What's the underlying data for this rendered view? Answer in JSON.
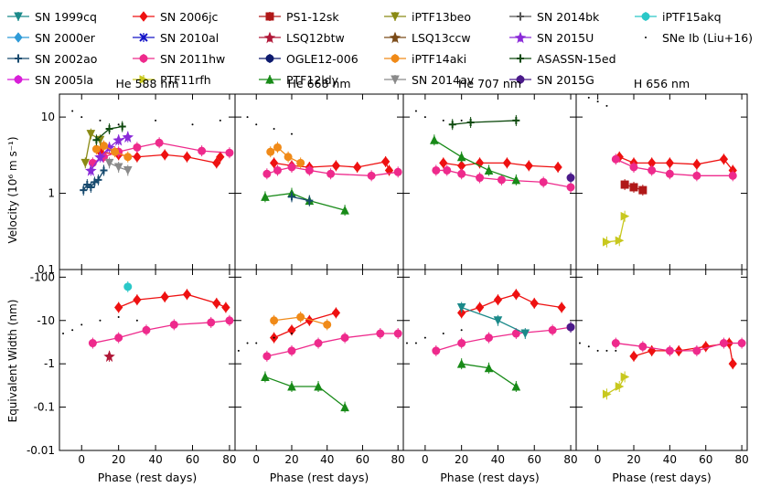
{
  "figure": {
    "x_axis_label": "Phase (rest days)",
    "x_ticks": [
      "0",
      "20",
      "40",
      "60",
      "80"
    ],
    "x_tick_values": [
      0,
      20,
      40,
      60,
      80
    ],
    "xlim": [
      -12,
      83
    ]
  },
  "legend": [
    {
      "name": "SN 1999cq",
      "color": "#1b8a8a",
      "marker": "tri_down"
    },
    {
      "name": "SN 2000er",
      "color": "#2f9bd8",
      "marker": "diamond"
    },
    {
      "name": "SN 2002ao",
      "color": "#174a6e",
      "marker": "plus"
    },
    {
      "name": "SN 2005la",
      "color": "#d81fd8",
      "marker": "circle"
    },
    {
      "name": "SN 2006jc",
      "color": "#ee1111",
      "marker": "diamond"
    },
    {
      "name": "SN 2010al",
      "color": "#1515c8",
      "marker": "x"
    },
    {
      "name": "SN 2011hw",
      "color": "#ee2a8c",
      "marker": "hexagon"
    },
    {
      "name": "PTF11rfh",
      "color": "#c8c81e",
      "marker": "tri_right"
    },
    {
      "name": "PS1-12sk",
      "color": "#b01818",
      "marker": "square"
    },
    {
      "name": "LSQ12btw",
      "color": "#b01838",
      "marker": "star"
    },
    {
      "name": "OGLE12-006",
      "color": "#0d1a6e",
      "marker": "hexagon"
    },
    {
      "name": "PTF12ldy",
      "color": "#188a18",
      "marker": "tri_up"
    },
    {
      "name": "iPTF13beo",
      "color": "#8a8a14",
      "marker": "tri_down"
    },
    {
      "name": "LSQ13ccw",
      "color": "#7a4a18",
      "marker": "star"
    },
    {
      "name": "iPTF14aki",
      "color": "#f08a18",
      "marker": "circle"
    },
    {
      "name": "SN 2014av",
      "color": "#8a8a8a",
      "marker": "tri_down"
    },
    {
      "name": "SN 2014bk",
      "color": "#555555",
      "marker": "plus"
    },
    {
      "name": "SN 2015U",
      "color": "#8a2ad8",
      "marker": "star"
    },
    {
      "name": "ASASSN-15ed",
      "color": "#0e4a0e",
      "marker": "plus"
    },
    {
      "name": "SN 2015G",
      "color": "#4a1a8a",
      "marker": "hexagon"
    },
    {
      "name": "iPTF15akq",
      "color": "#2ac8c8",
      "marker": "circle"
    },
    {
      "name": "SNe Ib (Liu+16)",
      "color": "#000000",
      "marker": "dot"
    }
  ],
  "chart_data": [
    {
      "type": "scatter",
      "row": "velocity",
      "title": "He 588 nm",
      "ylabel": "Velocity (10⁶ m s⁻¹)",
      "yscale": "log",
      "ylim": [
        0.1,
        20
      ],
      "yticks": [
        "0.1",
        "1",
        "10"
      ],
      "ytick_values": [
        0.1,
        1,
        10
      ],
      "series": [
        {
          "name": "SN 2006jc",
          "x": [
            10,
            20,
            30,
            45,
            57,
            73,
            75
          ],
          "y": [
            3.5,
            3.2,
            3.0,
            3.2,
            3.0,
            2.5,
            3.0
          ]
        },
        {
          "name": "SN 2011hw",
          "x": [
            6,
            12,
            20,
            30,
            42,
            65,
            80
          ],
          "y": [
            2.5,
            3.0,
            3.5,
            4.0,
            4.6,
            3.6,
            3.4
          ]
        },
        {
          "name": "SN 2002ao",
          "x": [
            1,
            3,
            5,
            7,
            9,
            12
          ],
          "y": [
            1.1,
            1.3,
            1.2,
            1.4,
            1.5,
            2.0
          ]
        },
        {
          "name": "SN 2015U",
          "x": [
            5,
            10,
            15,
            20,
            25
          ],
          "y": [
            2.0,
            3.0,
            4.0,
            5.0,
            5.5
          ]
        },
        {
          "name": "iPTF14aki",
          "x": [
            8,
            12,
            18,
            25
          ],
          "y": [
            3.8,
            4.2,
            3.5,
            3.0
          ]
        },
        {
          "name": "SN 2014av",
          "x": [
            15,
            20,
            25
          ],
          "y": [
            2.5,
            2.2,
            2.0
          ]
        },
        {
          "name": "iPTF13beo",
          "x": [
            2,
            5,
            10
          ],
          "y": [
            2.5,
            6.0,
            5.0
          ]
        },
        {
          "name": "ASASSN-15ed",
          "x": [
            8,
            15,
            22
          ],
          "y": [
            5.0,
            7.0,
            7.5
          ]
        },
        {
          "name": "SNe Ib (Liu+16)",
          "x": [
            -5,
            0,
            10,
            20,
            40,
            60,
            75
          ],
          "y": [
            12,
            10,
            9,
            8,
            9,
            8,
            9
          ]
        }
      ]
    },
    {
      "type": "scatter",
      "row": "velocity",
      "title": "He 668 nm",
      "ylabel": "",
      "yscale": "log",
      "ylim": [
        0.1,
        20
      ],
      "series": [
        {
          "name": "SN 2006jc",
          "x": [
            10,
            20,
            30,
            45,
            57,
            73,
            75
          ],
          "y": [
            2.5,
            2.3,
            2.2,
            2.3,
            2.2,
            2.6,
            2.0
          ]
        },
        {
          "name": "SN 2011hw",
          "x": [
            6,
            12,
            20,
            30,
            42,
            65,
            80
          ],
          "y": [
            1.8,
            2.0,
            2.2,
            2.0,
            1.8,
            1.7,
            1.9
          ]
        },
        {
          "name": "PTF12ldy",
          "x": [
            5,
            20,
            30,
            50
          ],
          "y": [
            0.9,
            1.0,
            0.8,
            0.6
          ]
        },
        {
          "name": "iPTF14aki",
          "x": [
            8,
            12,
            18,
            25
          ],
          "y": [
            3.5,
            4.0,
            3.0,
            2.5
          ]
        },
        {
          "name": "SN 2002ao",
          "x": [
            20,
            30
          ],
          "y": [
            0.9,
            0.8
          ]
        },
        {
          "name": "SNe Ib (Liu+16)",
          "x": [
            -5,
            0,
            10,
            20
          ],
          "y": [
            10,
            8,
            7,
            6
          ]
        }
      ]
    },
    {
      "type": "scatter",
      "row": "velocity",
      "title": "He 707 nm",
      "ylabel": "",
      "yscale": "log",
      "ylim": [
        0.1,
        20
      ],
      "series": [
        {
          "name": "SN 2006jc",
          "x": [
            10,
            20,
            30,
            45,
            57,
            73
          ],
          "y": [
            2.5,
            2.3,
            2.5,
            2.5,
            2.3,
            2.2
          ]
        },
        {
          "name": "SN 2011hw",
          "x": [
            6,
            12,
            20,
            30,
            42,
            65,
            80
          ],
          "y": [
            2.0,
            2.0,
            1.8,
            1.6,
            1.5,
            1.4,
            1.2
          ]
        },
        {
          "name": "ASASSN-15ed",
          "x": [
            15,
            25,
            50
          ],
          "y": [
            8,
            8.5,
            9
          ]
        },
        {
          "name": "PTF12ldy",
          "x": [
            5,
            20,
            35,
            50
          ],
          "y": [
            5,
            3,
            2,
            1.5
          ]
        },
        {
          "name": "SN 2015G",
          "x": [
            80
          ],
          "y": [
            1.6
          ]
        },
        {
          "name": "SNe Ib (Liu+16)",
          "x": [
            -5,
            0,
            10,
            20
          ],
          "y": [
            12,
            10,
            9,
            9
          ]
        }
      ]
    },
    {
      "type": "scatter",
      "row": "velocity",
      "title": "H 656 nm",
      "ylabel": "",
      "yscale": "log",
      "ylim": [
        0.1,
        20
      ],
      "series": [
        {
          "name": "SN 2006jc",
          "x": [
            12,
            20,
            30,
            40,
            55,
            70,
            75
          ],
          "y": [
            3.0,
            2.5,
            2.5,
            2.5,
            2.4,
            2.8,
            2.0
          ]
        },
        {
          "name": "SN 2011hw",
          "x": [
            10,
            20,
            30,
            40,
            55,
            75
          ],
          "y": [
            2.8,
            2.2,
            2.0,
            1.8,
            1.7,
            1.7
          ]
        },
        {
          "name": "PTF11rfh",
          "x": [
            5,
            12,
            15
          ],
          "y": [
            0.23,
            0.24,
            0.5
          ]
        },
        {
          "name": "PS1-12sk",
          "x": [
            15,
            20,
            25
          ],
          "y": [
            1.3,
            1.2,
            1.1
          ]
        },
        {
          "name": "SNe Ib (Liu+16)",
          "x": [
            -5,
            0,
            5
          ],
          "y": [
            18,
            16,
            14
          ]
        }
      ]
    },
    {
      "type": "scatter",
      "row": "ew",
      "title": "",
      "ylabel": "Equivalent Width (nm)",
      "yscale": "symlog",
      "ylim": [
        -0.01,
        -150
      ],
      "yticks": [
        "-0.01",
        "-0.1",
        "-1",
        "-10",
        "-100"
      ],
      "ytick_values": [
        -0.01,
        -0.1,
        -1,
        -10,
        -100
      ],
      "series": [
        {
          "name": "SN 2006jc",
          "x": [
            20,
            30,
            45,
            57,
            73,
            78
          ],
          "y": [
            -20,
            -30,
            -35,
            -40,
            -25,
            -20
          ]
        },
        {
          "name": "SN 2011hw",
          "x": [
            6,
            20,
            35,
            50,
            70,
            80
          ],
          "y": [
            -3,
            -4,
            -6,
            -8,
            -9,
            -10
          ]
        },
        {
          "name": "LSQ12btw",
          "x": [
            15
          ],
          "y": [
            -1.5
          ]
        },
        {
          "name": "iPTF15akq",
          "x": [
            25
          ],
          "y": [
            -60
          ]
        },
        {
          "name": "SNe Ib (Liu+16)",
          "x": [
            -10,
            -5,
            0,
            10,
            20,
            30
          ],
          "y": [
            -5,
            -6,
            -8,
            -10,
            -12,
            -10
          ]
        }
      ]
    },
    {
      "type": "scatter",
      "row": "ew",
      "title": "",
      "ylabel": "",
      "yscale": "symlog",
      "ylim": [
        -0.01,
        -150
      ],
      "series": [
        {
          "name": "SN 2006jc",
          "x": [
            10,
            20,
            30,
            45
          ],
          "y": [
            -4,
            -6,
            -10,
            -15
          ]
        },
        {
          "name": "SN 2011hw",
          "x": [
            6,
            20,
            35,
            50,
            70,
            80
          ],
          "y": [
            -1.5,
            -2,
            -3,
            -4,
            -5,
            -5
          ]
        },
        {
          "name": "PTF12ldy",
          "x": [
            5,
            20,
            35,
            50
          ],
          "y": [
            -0.5,
            -0.3,
            -0.3,
            -0.1
          ]
        },
        {
          "name": "iPTF14aki",
          "x": [
            10,
            25,
            40
          ],
          "y": [
            -10,
            -12,
            -8
          ]
        },
        {
          "name": "SNe Ib (Liu+16)",
          "x": [
            -10,
            -5,
            0,
            10,
            20
          ],
          "y": [
            -2,
            -3,
            -3,
            -4,
            -5
          ]
        }
      ]
    },
    {
      "type": "scatter",
      "row": "ew",
      "title": "",
      "ylabel": "",
      "yscale": "symlog",
      "ylim": [
        -0.01,
        -150
      ],
      "series": [
        {
          "name": "SN 2006jc",
          "x": [
            20,
            30,
            40,
            50,
            60,
            75
          ],
          "y": [
            -15,
            -20,
            -30,
            -40,
            -25,
            -20
          ]
        },
        {
          "name": "SN 2011hw",
          "x": [
            6,
            20,
            35,
            50,
            70,
            80
          ],
          "y": [
            -2,
            -3,
            -4,
            -5,
            -6,
            -7
          ]
        },
        {
          "name": "SN 1999cq",
          "x": [
            20,
            40,
            55
          ],
          "y": [
            -20,
            -10,
            -5
          ]
        },
        {
          "name": "PTF12ldy",
          "x": [
            20,
            35,
            50
          ],
          "y": [
            -1.0,
            -0.8,
            -0.3
          ]
        },
        {
          "name": "SN 2015G",
          "x": [
            80
          ],
          "y": [
            -7
          ]
        },
        {
          "name": "SNe Ib (Liu+16)",
          "x": [
            -10,
            -5,
            0,
            10,
            20
          ],
          "y": [
            -3,
            -3,
            -4,
            -5,
            -6
          ]
        }
      ]
    },
    {
      "type": "scatter",
      "row": "ew",
      "title": "",
      "ylabel": "",
      "yscale": "symlog",
      "ylim": [
        -0.01,
        -150
      ],
      "series": [
        {
          "name": "SN 2006jc",
          "x": [
            20,
            30,
            45,
            60,
            73,
            75
          ],
          "y": [
            -1.5,
            -2,
            -2,
            -2.5,
            -3,
            -1.0
          ]
        },
        {
          "name": "SN 2011hw",
          "x": [
            10,
            25,
            40,
            55,
            70,
            80
          ],
          "y": [
            -3,
            -2.5,
            -2,
            -2,
            -3,
            -3
          ]
        },
        {
          "name": "PTF11rfh",
          "x": [
            5,
            12,
            15
          ],
          "y": [
            -0.2,
            -0.3,
            -0.5
          ]
        },
        {
          "name": "SNe Ib (Liu+16)",
          "x": [
            -10,
            -5,
            0,
            5,
            10
          ],
          "y": [
            -3,
            -2.5,
            -2,
            -2,
            -2
          ]
        }
      ]
    }
  ]
}
